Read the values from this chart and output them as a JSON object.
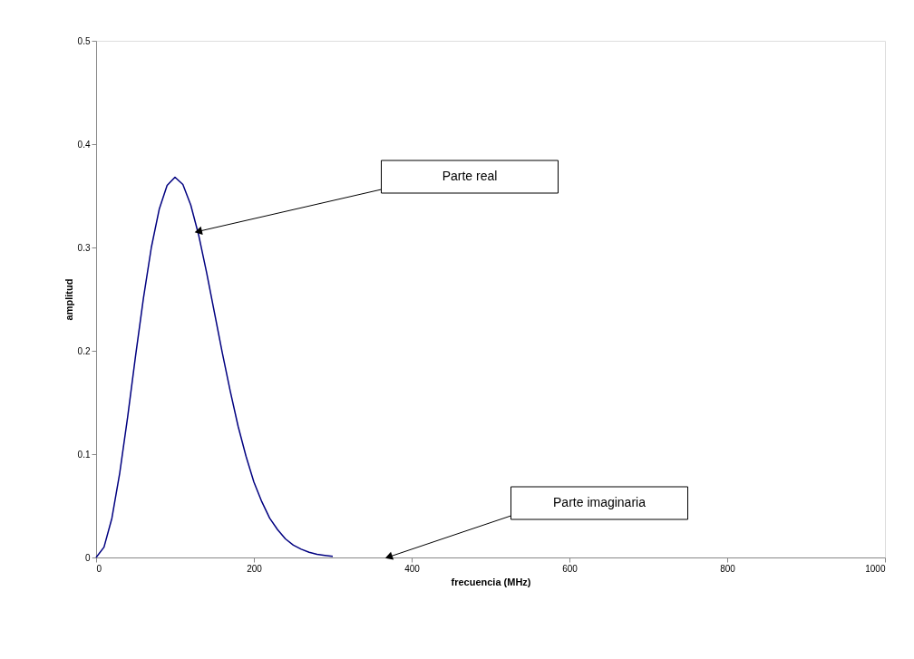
{
  "chart_data": {
    "type": "line",
    "xlabel": "frecuencia (MHz)",
    "ylabel": "amplitud",
    "x": [
      0,
      10,
      20,
      30,
      40,
      50,
      60,
      70,
      80,
      90,
      100,
      110,
      120,
      130,
      140,
      150,
      160,
      170,
      180,
      190,
      200,
      210,
      220,
      230,
      240,
      250,
      260,
      270,
      280,
      290,
      300
    ],
    "series": [
      {
        "color": "#000080",
        "values": [
          0,
          0.01,
          0.038,
          0.082,
          0.136,
          0.195,
          0.251,
          0.3,
          0.337,
          0.36,
          0.368,
          0.361,
          0.341,
          0.312,
          0.276,
          0.237,
          0.198,
          0.161,
          0.127,
          0.098,
          0.073,
          0.054,
          0.038,
          0.027,
          0.018,
          0.012,
          0.008,
          0.005,
          0.003,
          0.002,
          0.001
        ]
      }
    ],
    "xlim": [
      0,
      1000
    ],
    "xticks": [
      0,
      200,
      400,
      600,
      800,
      1000
    ],
    "ylim": [
      0,
      0.5
    ],
    "yticks": [
      0,
      0.1,
      0.2,
      0.3,
      0.4,
      0.5
    ],
    "grid": false,
    "marker": "none",
    "line_style": "solid",
    "annotations": [
      "Parte real",
      "Parte imaginaria"
    ]
  }
}
